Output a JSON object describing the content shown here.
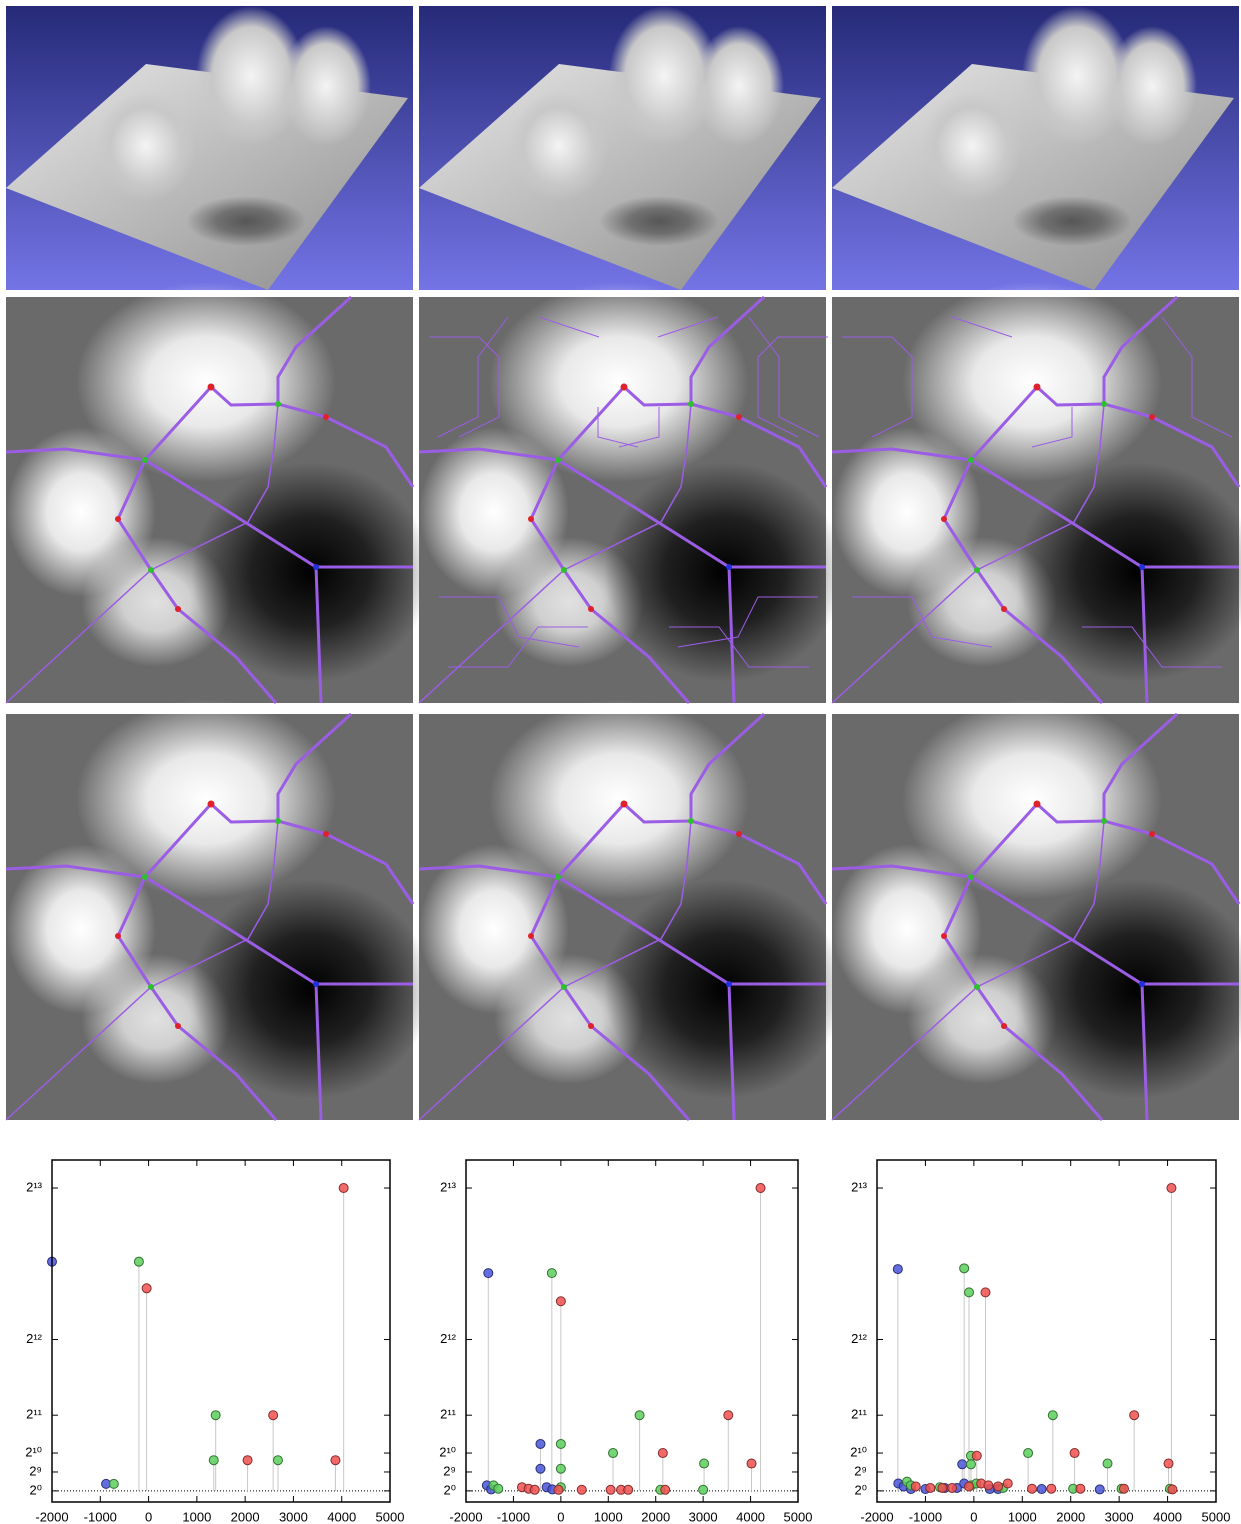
{
  "chart_data": [
    {
      "type": "lollipop",
      "xlim": [
        -2000,
        5000
      ],
      "xticks": [
        -2000,
        -1000,
        0,
        1000,
        2000,
        3000,
        4000,
        5000
      ],
      "ylim": [
        -300,
        8950
      ],
      "yticks": [
        {
          "value": 1,
          "label": "2⁰"
        },
        {
          "value": 512,
          "label": "2⁹"
        },
        {
          "value": 1024,
          "label": "2¹⁰"
        },
        {
          "value": 2048,
          "label": "2¹¹"
        },
        {
          "value": 4096,
          "label": "2¹²"
        },
        {
          "value": 8192,
          "label": "2¹³"
        }
      ],
      "series": [
        {
          "color": "#4a55d8",
          "x": [
            -2000,
            -880
          ],
          "values": [
            6200,
            190
          ]
        },
        {
          "color": "#5ccf5c",
          "x": [
            -200,
            -720,
            1390,
            1350,
            2680
          ],
          "values": [
            6200,
            190,
            2048,
            830,
            830
          ]
        },
        {
          "color": "#f05050",
          "x": [
            -40,
            2580,
            2050,
            3870,
            4040
          ],
          "values": [
            5480,
            2048,
            830,
            830,
            8192
          ]
        }
      ]
    },
    {
      "type": "lollipop",
      "xlim": [
        -2000,
        5000
      ],
      "xticks": [
        -2000,
        -1000,
        0,
        1000,
        2000,
        3000,
        4000,
        5000
      ],
      "ylim": [
        -300,
        8950
      ],
      "yticks": [
        {
          "value": 1,
          "label": "2⁰"
        },
        {
          "value": 512,
          "label": "2⁹"
        },
        {
          "value": 1024,
          "label": "2¹⁰"
        },
        {
          "value": 2048,
          "label": "2¹¹"
        },
        {
          "value": 4096,
          "label": "2¹²"
        },
        {
          "value": 8192,
          "label": "2¹³"
        }
      ],
      "series": [
        {
          "color": "#4a55d8",
          "x": [
            -1530,
            -430,
            -430,
            -1560,
            -1470,
            -300,
            -180
          ],
          "values": [
            5890,
            1270,
            600,
            150,
            40,
            100,
            40
          ]
        },
        {
          "color": "#5ccf5c",
          "x": [
            -190,
            0,
            0,
            1100,
            1660,
            3020,
            -1420,
            -1320,
            0,
            2100,
            3000
          ],
          "values": [
            5890,
            1270,
            600,
            1024,
            2048,
            740,
            150,
            60,
            100,
            30,
            30
          ]
        },
        {
          "color": "#f05050",
          "x": [
            0,
            3530,
            4210,
            2150,
            4020,
            -820,
            -680,
            440,
            1050,
            1270,
            1420,
            2200,
            -550,
            -50
          ],
          "values": [
            5130,
            2048,
            8192,
            1024,
            740,
            100,
            60,
            30,
            30,
            30,
            30,
            30,
            30,
            30
          ]
        }
      ]
    },
    {
      "type": "lollipop",
      "xlim": [
        -2000,
        5000
      ],
      "xticks": [
        -2000,
        -1000,
        0,
        1000,
        2000,
        3000,
        4000,
        5000
      ],
      "ylim": [
        -300,
        8950
      ],
      "yticks": [
        {
          "value": 1,
          "label": "2⁰"
        },
        {
          "value": 512,
          "label": "2⁹"
        },
        {
          "value": 1024,
          "label": "2¹⁰"
        },
        {
          "value": 2048,
          "label": "2¹¹"
        },
        {
          "value": 4096,
          "label": "2¹²"
        },
        {
          "value": 8192,
          "label": "2¹³"
        }
      ],
      "series": [
        {
          "color": "#4a55d8",
          "x": [
            -1570,
            -240,
            -1560,
            -1450,
            -1300,
            -1000,
            -600,
            -350,
            -200,
            330,
            500,
            1400,
            2600
          ],
          "values": [
            6000,
            720,
            200,
            120,
            50,
            50,
            80,
            80,
            200,
            50,
            50,
            50,
            40
          ]
        },
        {
          "color": "#5ccf5c",
          "x": [
            -200,
            -100,
            1630,
            1120,
            2760,
            -60,
            -60,
            -1380,
            -1300,
            -700,
            -50,
            50,
            600,
            2050,
            3050,
            4050
          ],
          "values": [
            6020,
            5370,
            2048,
            1024,
            740,
            950,
            720,
            250,
            150,
            100,
            150,
            200,
            80,
            60,
            60,
            60
          ]
        },
        {
          "color": "#f05050",
          "x": [
            240,
            4080,
            3310,
            2080,
            4020,
            60,
            -1200,
            -900,
            -650,
            -450,
            -100,
            150,
            300,
            500,
            700,
            1200,
            1600,
            2200,
            3100,
            4100
          ],
          "values": [
            5370,
            8192,
            2048,
            1024,
            740,
            950,
            120,
            80,
            80,
            80,
            120,
            200,
            150,
            120,
            200,
            60,
            60,
            60,
            60,
            40
          ]
        }
      ]
    }
  ]
}
